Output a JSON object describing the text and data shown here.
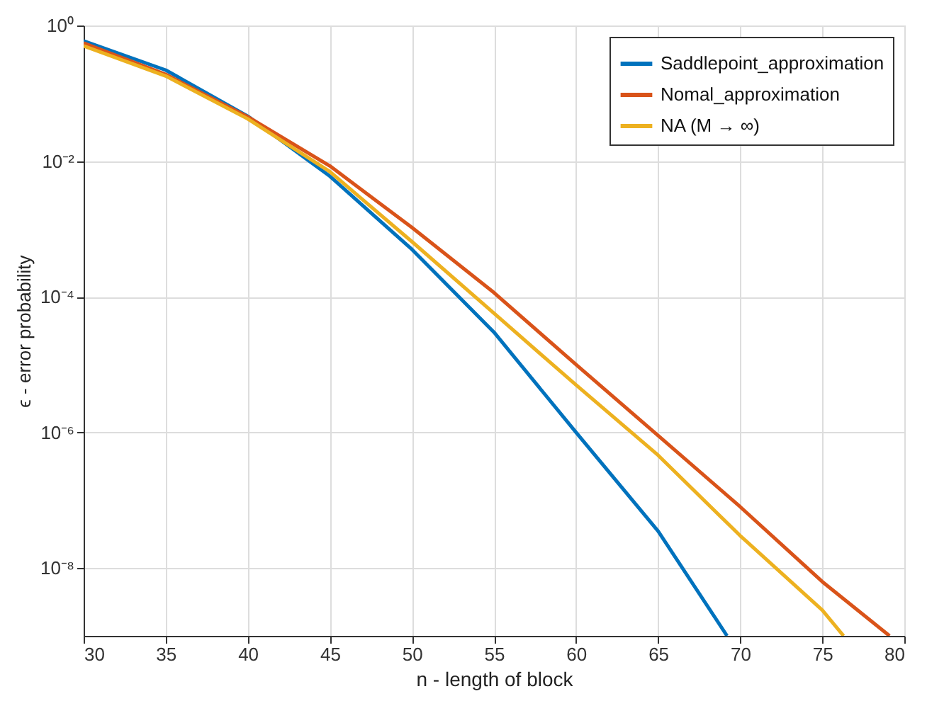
{
  "chart_data": {
    "type": "line",
    "xlabel": "n - length of block",
    "ylabel": "ϵ - error probability",
    "log": "y",
    "grid": true,
    "legend": "top right",
    "line_style": "solid",
    "marker": "none",
    "xlim": [
      30,
      80
    ],
    "xticks": [
      30,
      35,
      40,
      45,
      50,
      55,
      60,
      65,
      70,
      75,
      80
    ],
    "ylim": [
      1e-09,
      1
    ],
    "yticks": [
      {
        "value": 1,
        "label": "10⁰"
      },
      {
        "value": 0.01,
        "label": "10⁻²"
      },
      {
        "value": 0.0001,
        "label": "10⁻⁴"
      },
      {
        "value": 1e-06,
        "label": "10⁻⁶"
      },
      {
        "value": 1e-08,
        "label": "10⁻⁸"
      }
    ],
    "series": [
      {
        "name": "Saddlepoint_approximation",
        "color": "#0072bd",
        "x": [
          30,
          35,
          40,
          45,
          50,
          55,
          60,
          65,
          69.2
        ],
        "values": [
          0.59,
          0.22,
          0.046,
          0.006,
          0.0005,
          3e-05,
          1e-06,
          3.5e-08,
          1e-09
        ]
      },
      {
        "name": "Nomal_approximation",
        "color": "#d95319",
        "x": [
          30,
          35,
          40,
          45,
          50,
          55,
          60,
          65,
          70,
          75,
          79.1
        ],
        "values": [
          0.55,
          0.19,
          0.045,
          0.0085,
          0.00105,
          0.000115,
          1e-05,
          9e-07,
          8e-08,
          6.3e-09,
          1e-09
        ]
      },
      {
        "name": "NA (M → ∞)",
        "color": "#edb120",
        "x": [
          30,
          35,
          40,
          45,
          50,
          55,
          60,
          65,
          70,
          75,
          76.3
        ],
        "values": [
          0.5,
          0.18,
          0.042,
          0.007,
          0.00065,
          5.7e-05,
          5e-06,
          4.6e-07,
          3e-08,
          2.4e-09,
          1e-09
        ]
      }
    ]
  }
}
